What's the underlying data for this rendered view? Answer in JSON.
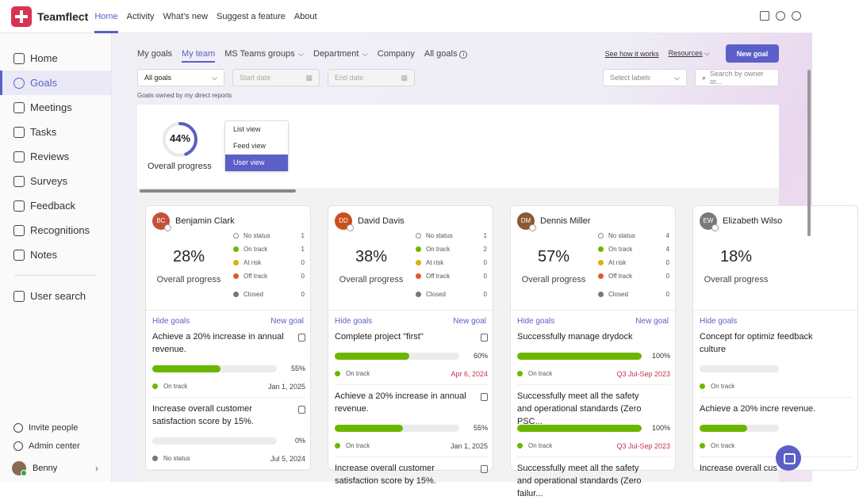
{
  "app": {
    "name": "Teamflect"
  },
  "topnav": [
    "Home",
    "Activity",
    "What's new",
    "Suggest a feature",
    "About"
  ],
  "sidebar": {
    "items": [
      "Home",
      "Goals",
      "Meetings",
      "Tasks",
      "Reviews",
      "Surveys",
      "Feedback",
      "Recognitions",
      "Notes"
    ],
    "search": "User search",
    "bottom": [
      "Invite people",
      "Admin center"
    ],
    "user": "Benny"
  },
  "tabs": [
    "My goals",
    "My team",
    "MS Teams groups",
    "Department",
    "Company",
    "All goals"
  ],
  "links": {
    "how": "See how it works",
    "resources": "Resources",
    "new_goal": "New goal"
  },
  "filters": {
    "goals": "All goals",
    "start": "Start date",
    "end": "End date",
    "labels": "Select labels",
    "search": "Search by owner or..."
  },
  "subtitle": "Goals owned by my direct reports",
  "overall": {
    "percent": "44%",
    "percent_value": 44,
    "label": "Overall progress"
  },
  "views": [
    "List view",
    "Feed view",
    "User view"
  ],
  "status_labels": [
    "No status",
    "On track",
    "At risk",
    "Off track",
    "Closed"
  ],
  "card_labels": {
    "overall": "Overall progress",
    "hide": "Hide goals",
    "new": "New goal"
  },
  "colors": {
    "accent": "#5b5fc7",
    "on_track": "#6bb700",
    "at_risk": "#d9b300",
    "off_track": "#e05a2b",
    "closed": "#777777",
    "late_date": "#c4314b"
  },
  "cards": [
    {
      "initials": "BC",
      "name": "Benjamin Clark",
      "avatar_color": "#c4513b",
      "percent": "28%",
      "counts": [
        "1",
        "1",
        "0",
        "0",
        "0"
      ],
      "goals": [
        {
          "title": "Achieve a 20% increase in annual revenue.",
          "pct": "55%",
          "value": 55,
          "status": "On track",
          "date": "Jan 1, 2025"
        },
        {
          "title": "Increase overall customer satisfaction score by 15%.",
          "pct": "0%",
          "value": 0,
          "status": "No status",
          "date": "Jul 5, 2024"
        }
      ]
    },
    {
      "initials": "DD",
      "name": "David Davis",
      "avatar_color": "#c94f1d",
      "percent": "38%",
      "counts": [
        "1",
        "2",
        "0",
        "0",
        "0"
      ],
      "goals": [
        {
          "title": "Complete project \"first\"",
          "pct": "60%",
          "value": 60,
          "status": "On track",
          "date": "Apr 6, 2024"
        },
        {
          "title": "Achieve a 20% increase in annual revenue.",
          "pct": "55%",
          "value": 55,
          "status": "On track",
          "date": "Jan 1, 2025"
        },
        {
          "title": "Increase overall customer satisfaction score by 15%."
        }
      ]
    },
    {
      "initials": "DM",
      "name": "Dennis Miller",
      "avatar_color": "#8b5a35",
      "percent": "57%",
      "counts": [
        "4",
        "4",
        "0",
        "0",
        "0"
      ],
      "goals": [
        {
          "title": "Successfully manage drydock",
          "pct": "100%",
          "value": 100,
          "status": "On track",
          "date": "Q3 Jul-Sep 2023"
        },
        {
          "title": "Successfully meet all the safety and operational standards (Zero PSC...",
          "pct": "100%",
          "value": 100,
          "status": "On track",
          "date": "Q3 Jul-Sep 2023"
        },
        {
          "title": "Successfully meet all the safety and operational standards (Zero failur..."
        }
      ]
    },
    {
      "initials": "EW",
      "name": "Elizabeth Wilso",
      "avatar_color": "#7a7a7a",
      "percent": "18%",
      "counts": [
        "",
        "",
        "",
        "",
        ""
      ],
      "goals": [
        {
          "title": "Concept for optimiz feedback culture",
          "pct": "",
          "value": 0,
          "status": "On track",
          "date": ""
        },
        {
          "title": "Achieve a 20% incre revenue.",
          "pct": "",
          "value": 60,
          "status": "On track",
          "date": ""
        },
        {
          "title": "Increase overall cus"
        }
      ]
    }
  ]
}
